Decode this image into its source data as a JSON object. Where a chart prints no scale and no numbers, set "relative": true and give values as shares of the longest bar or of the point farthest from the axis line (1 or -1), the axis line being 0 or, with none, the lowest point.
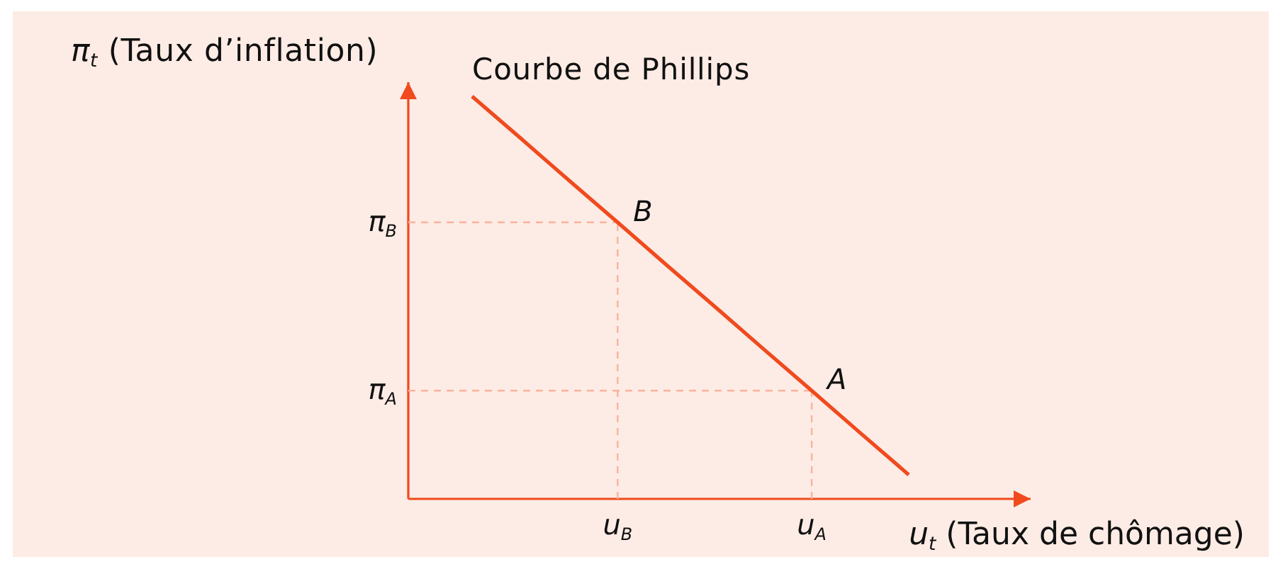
{
  "chart_data": {
    "type": "line",
    "relative": true,
    "xlabel": "u$_{t}$ (Taux de chômage)",
    "ylabel": "π$_{t}$ (Taux d’inflation)",
    "categories": [
      null,
      null,
      null,
      "u$_{B}$",
      null,
      null,
      null,
      "u$_{A}$",
      null,
      null
    ],
    "series": [
      {
        "name": "Courbe de Phillips",
        "color": "#f04a1e",
        "values": [
          1,
          0.896,
          0.791,
          0.687,
          0.582,
          0.478,
          0.373,
          0.269,
          0.164,
          0.06
        ]
      }
    ],
    "ref_lines": [
      {
        "axis": "y",
        "value": 0.687,
        "label": "π$_{B}$",
        "color": "#f9b39c",
        "line_style": "dashed"
      },
      {
        "axis": "y",
        "value": 0.269,
        "label": "π$_{A}$",
        "color": "#f9b39c",
        "line_style": "dashed"
      },
      {
        "axis": "x",
        "value": "u$_{B}$",
        "color": "#f9b39c",
        "line_style": "dashed"
      },
      {
        "axis": "x",
        "value": "u$_{A}$",
        "color": "#f9b39c",
        "line_style": "dashed"
      }
    ],
    "annotations": [
      {
        "text": "B",
        "x": "u$_{B}$",
        "y": 0.687
      },
      {
        "text": "A",
        "x": "u$_{A}$",
        "y": 0.269
      }
    ]
  }
}
